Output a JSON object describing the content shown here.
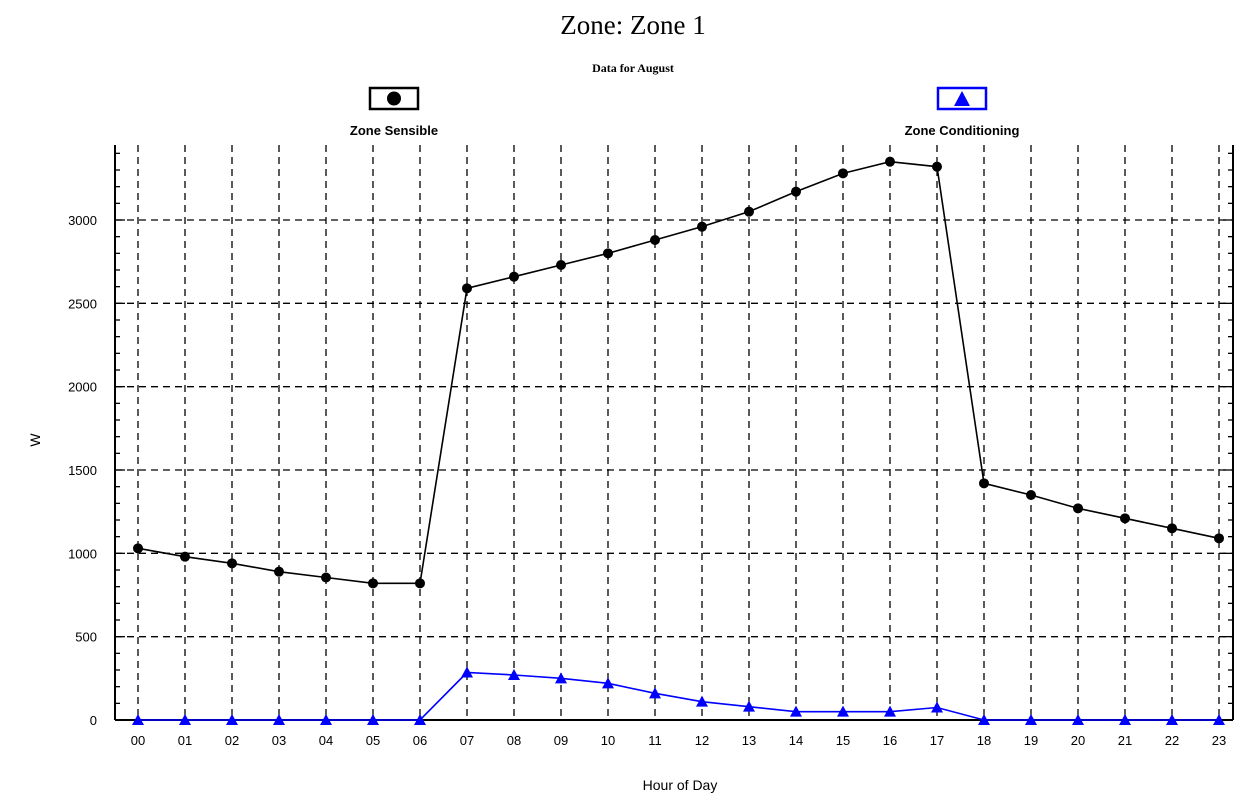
{
  "chart_data": {
    "type": "line",
    "title": "Zone: Zone 1",
    "subtitle": "Data for August",
    "xlabel": "Hour of Day",
    "ylabel": "W",
    "categories": [
      "00",
      "01",
      "02",
      "03",
      "04",
      "05",
      "06",
      "07",
      "08",
      "09",
      "10",
      "11",
      "12",
      "13",
      "14",
      "15",
      "16",
      "17",
      "18",
      "19",
      "20",
      "21",
      "22",
      "23"
    ],
    "yticks": [
      0,
      500,
      1000,
      1500,
      2000,
      2500,
      3000
    ],
    "ylim": [
      0,
      3450
    ],
    "grid": true,
    "legend_position": "top",
    "series": [
      {
        "name": "Zone Sensible",
        "color": "#000000",
        "marker": "circle",
        "values": [
          1030,
          980,
          940,
          890,
          855,
          820,
          820,
          2590,
          2660,
          2730,
          2800,
          2880,
          2960,
          3050,
          3170,
          3280,
          3350,
          3320,
          1420,
          1350,
          1270,
          1210,
          1150,
          1090
        ]
      },
      {
        "name": "Zone Conditioning",
        "color": "#0000ff",
        "marker": "triangle",
        "values": [
          0,
          0,
          0,
          0,
          0,
          0,
          0,
          285,
          270,
          250,
          220,
          160,
          110,
          80,
          50,
          50,
          50,
          75,
          0,
          0,
          0,
          0,
          0,
          0
        ]
      }
    ]
  }
}
